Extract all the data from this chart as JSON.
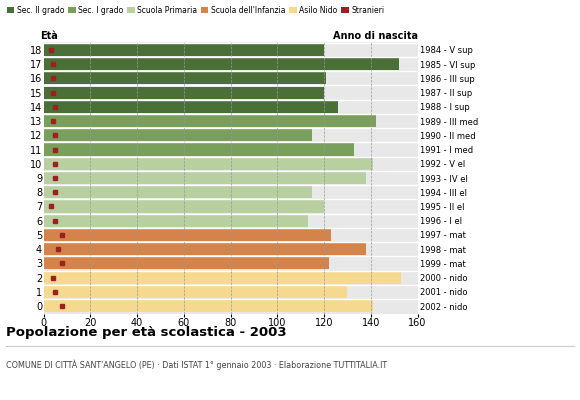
{
  "ages": [
    18,
    17,
    16,
    15,
    14,
    13,
    12,
    11,
    10,
    9,
    8,
    7,
    6,
    5,
    4,
    3,
    2,
    1,
    0
  ],
  "values": [
    120,
    152,
    121,
    120,
    126,
    142,
    115,
    133,
    141,
    138,
    115,
    120,
    113,
    123,
    138,
    122,
    153,
    130,
    141
  ],
  "stranieri": [
    3,
    4,
    4,
    4,
    5,
    4,
    5,
    5,
    5,
    5,
    5,
    3,
    5,
    8,
    6,
    8,
    4,
    5,
    8
  ],
  "right_labels": [
    "1984 - V sup",
    "1985 - VI sup",
    "1986 - III sup",
    "1987 - II sup",
    "1988 - I sup",
    "1989 - III med",
    "1990 - II med",
    "1991 - I med",
    "1992 - V el",
    "1993 - IV el",
    "1994 - III el",
    "1995 - II el",
    "1996 - I el",
    "1997 - mat",
    "1998 - mat",
    "1999 - mat",
    "2000 - nido",
    "2001 - nido",
    "2002 - nido"
  ],
  "colors": {
    "sec2": "#4a7038",
    "sec1": "#7a9e5c",
    "primaria": "#b8cfa0",
    "infanzia": "#d4834a",
    "nido": "#f5d98e",
    "stranieri": "#9e2020"
  },
  "legend_labels": [
    "Sec. II grado",
    "Sec. I grado",
    "Scuola Primaria",
    "Scuola dell'Infanzia",
    "Asilo Nido",
    "Stranieri"
  ],
  "title": "Popolazione per età scolastica - 2003",
  "subtitle": "COMUNE DI CITTÀ SANT'ANGELO (PE) · Dati ISTAT 1° gennaio 2003 · Elaborazione TUTTITALIA.IT",
  "xlim": [
    0,
    160
  ],
  "xticks": [
    0,
    20,
    40,
    60,
    80,
    100,
    120,
    140,
    160
  ],
  "bg_color": "#e8e8e8",
  "fig_bg": "#ffffff"
}
